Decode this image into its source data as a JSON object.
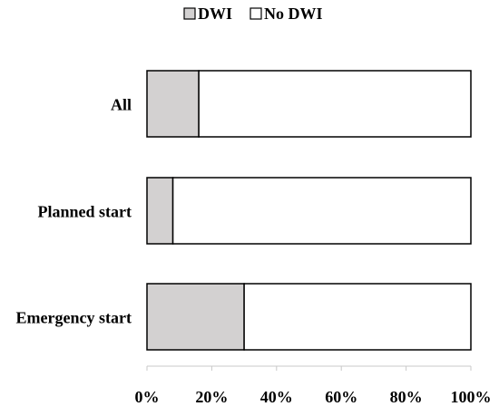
{
  "chart_data": {
    "type": "bar",
    "orientation": "horizontal",
    "stacked": true,
    "percent_scale": true,
    "categories": [
      "All",
      "Planned start",
      "Emergency start"
    ],
    "series": [
      {
        "name": "DWI",
        "values": [
          16,
          8,
          30
        ],
        "color": "#d3d1d1"
      },
      {
        "name": "No DWI",
        "values": [
          84,
          92,
          70
        ],
        "color": "#ffffff"
      }
    ],
    "xlim": [
      0,
      100
    ],
    "x_ticks": [
      "0%",
      "20%",
      "40%",
      "60%",
      "80%",
      "100%"
    ],
    "grid": false,
    "legend_position": "top"
  }
}
